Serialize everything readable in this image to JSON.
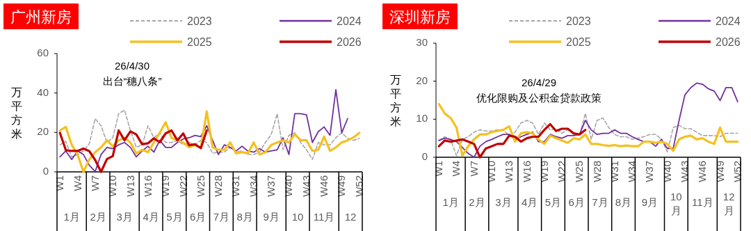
{
  "chart_data": [
    {
      "type": "line",
      "title": "广州新房",
      "ylabel": "万平方米",
      "ylim": [
        0,
        60
      ],
      "yticks": [
        0,
        20,
        40,
        60
      ],
      "grid": false,
      "legend": "top",
      "categories": [
        "W1",
        null,
        null,
        "W4",
        null,
        null,
        "W7",
        null,
        null,
        "W10",
        null,
        null,
        "W13",
        null,
        null,
        "W16",
        null,
        null,
        "W19",
        null,
        null,
        "W22",
        null,
        null,
        "W25",
        null,
        null,
        "W28",
        null,
        null,
        "W31",
        null,
        null,
        "W34",
        null,
        null,
        "W37",
        null,
        null,
        "W40",
        null,
        null,
        "W43",
        null,
        null,
        "W46",
        null,
        null,
        "W49",
        null,
        null,
        "W52"
      ],
      "annotations": [
        "26/4/30\n出台“穗八条”",
        "1月",
        "2月",
        "3月",
        "4月",
        "5月",
        "6月",
        "7月",
        "8月",
        "9月",
        "10",
        "11月",
        "12"
      ],
      "series": [
        {
          "name": "2023",
          "color": "#a6a6a6",
          "line_style": "dashed",
          "values": [
            13.7,
            15.5,
            7.6,
            8.8,
            10.6,
            14.3,
            27,
            23.4,
            14.9,
            17.3,
            29.5,
            31.3,
            21,
            12.4,
            13.7,
            23.4,
            17.3,
            19.8,
            14.9,
            14.9,
            16,
            13.7,
            14.9,
            13.7,
            16,
            14.9,
            9.4,
            10,
            10,
            12.4,
            10,
            10.6,
            8.8,
            8.8,
            10,
            14.9,
            19,
            29.5,
            11.2,
            18.5,
            19.8,
            14.9,
            11.2,
            6.3,
            14.9,
            13.7,
            13.7,
            17.3,
            19.8,
            17,
            16,
            17
          ]
        },
        {
          "name": "2024",
          "color": "#7030a0",
          "line_style": "solid",
          "values": [
            7.6,
            10.6,
            6.3,
            10.6,
            8.8,
            3.3,
            0.2,
            8.8,
            12.4,
            11.8,
            13.7,
            14.9,
            12.4,
            7.6,
            10.6,
            13,
            10,
            16,
            12.4,
            12.4,
            14.9,
            16.7,
            17.3,
            18.5,
            17.9,
            23.4,
            16,
            8.8,
            13.7,
            12.4,
            10.6,
            13,
            10.6,
            10,
            11.8,
            10,
            10.6,
            11.2,
            17.3,
            8.8,
            29.5,
            29.5,
            28.9,
            14.9,
            20.4,
            22.8,
            18.5,
            41.7,
            19.8,
            27,
            null,
            null
          ]
        },
        {
          "name": "2025",
          "color": "#f5c020",
          "line_style": "solid",
          "values": [
            21,
            22.8,
            13.7,
            8.8,
            0,
            6.3,
            10,
            12.4,
            16,
            13,
            16,
            17.3,
            14.9,
            9.4,
            11.2,
            10,
            14.9,
            19.8,
            25.2,
            17.3,
            16,
            14.9,
            12.4,
            13.7,
            12.4,
            30.7,
            12.4,
            11.2,
            11.2,
            14.9,
            9.4,
            10,
            9.4,
            14.9,
            8.8,
            10,
            13.7,
            14.9,
            16,
            14.9,
            19.1,
            16,
            16,
            10.6,
            11.2,
            17.9,
            10.6,
            12.4,
            14.9,
            16,
            17.5,
            19.8
          ]
        },
        {
          "name": "2026",
          "color": "#c00000",
          "line_style": "solid",
          "values": [
            19.8,
            11,
            10.6,
            10.6,
            11.8,
            10.5,
            6,
            0,
            6.5,
            8,
            21,
            16,
            20.5,
            19,
            14,
            14.5,
            17,
            15,
            19.5,
            21,
            16,
            19.5,
            13.5,
            14,
            12,
            21,
            null,
            null,
            null,
            null,
            null,
            null,
            null,
            null,
            null,
            null,
            null,
            null,
            null,
            null,
            null,
            null,
            null,
            null,
            null,
            null,
            null,
            null,
            null,
            null,
            null,
            null
          ]
        }
      ]
    },
    {
      "type": "line",
      "title": "深圳新房",
      "ylabel": "万平方米",
      "ylim": [
        0,
        30
      ],
      "yticks": [
        0,
        10,
        20,
        30
      ],
      "grid": false,
      "legend": "top",
      "categories": [
        "W1",
        null,
        null,
        "W4",
        null,
        null,
        "W7",
        null,
        null,
        "W10",
        null,
        null,
        "W13",
        null,
        null,
        "W16",
        null,
        null,
        "W19",
        null,
        null,
        "W22",
        null,
        null,
        "W25",
        null,
        null,
        "W28",
        null,
        null,
        "W31",
        null,
        null,
        "W34",
        null,
        null,
        "W37",
        null,
        null,
        "W40",
        null,
        null,
        "W43",
        null,
        null,
        "W46",
        null,
        null,
        "W49",
        null,
        null,
        "W52"
      ],
      "annotations": [
        "26/4/29\n优化限购及公积金贷款政策",
        "1月",
        "2月",
        "3月",
        "4月",
        "5月",
        "6月",
        "7月",
        "8月",
        "9月",
        "10月",
        "11月",
        "12月"
      ],
      "series": [
        {
          "name": "2023",
          "color": "#a6a6a6",
          "line_style": "dashed",
          "values": [
            4.4,
            5.4,
            4.7,
            0.4,
            4.7,
            5.4,
            6.6,
            7.2,
            6.9,
            6.9,
            7.2,
            7.2,
            5.7,
            6.6,
            9,
            9.7,
            9,
            6,
            9,
            7.2,
            7.5,
            6.3,
            7.2,
            6,
            5.7,
            11.5,
            4.7,
            9.7,
            10.3,
            7.8,
            6,
            5.4,
            5.4,
            4.7,
            5,
            5.4,
            6,
            6,
            4.7,
            1.4,
            7.8,
            8.4,
            7.5,
            7.5,
            6.6,
            5.7,
            5.7,
            5.7,
            5.4,
            6.3,
            6.3,
            6.3
          ]
        },
        {
          "name": "2024",
          "color": "#7030a0",
          "line_style": "solid",
          "values": [
            4.4,
            5,
            4.7,
            4.1,
            2.6,
            1,
            0,
            2.9,
            4.1,
            4.7,
            5.4,
            6,
            6,
            4.7,
            5.4,
            6,
            6.6,
            4.1,
            4.1,
            6,
            5.4,
            5,
            5.7,
            5.7,
            6,
            9.7,
            7.2,
            6,
            6.3,
            6.3,
            7.2,
            6.3,
            6.3,
            5.4,
            4.7,
            4.1,
            4.1,
            2.9,
            4.7,
            2.3,
            2.3,
            9.7,
            16.4,
            18.3,
            19.5,
            19.2,
            18,
            17.4,
            14.9,
            18.3,
            18.3,
            14.6
          ]
        },
        {
          "name": "2025",
          "color": "#f5c020",
          "line_style": "solid",
          "values": [
            14,
            11.5,
            10.3,
            7.8,
            0.4,
            2.9,
            4.7,
            6,
            6,
            6.6,
            6.9,
            7.2,
            8.1,
            4.1,
            6.3,
            6.6,
            6.3,
            4.7,
            3.5,
            5.7,
            5,
            4.4,
            3.8,
            5,
            4.7,
            6,
            3.5,
            3.5,
            3.2,
            3,
            3.2,
            2.9,
            3.1,
            2.9,
            2.9,
            4.1,
            4.1,
            3.8,
            4.1,
            3.5,
            1.7,
            4.7,
            5.4,
            5.7,
            4.7,
            5,
            4.1,
            3.5,
            7.8,
            4.1,
            4.1,
            4.1
          ]
        },
        {
          "name": "2026",
          "color": "#c00000",
          "line_style": "solid",
          "values": [
            2.9,
            4.4,
            4.1,
            4.4,
            4.7,
            4.1,
            3.5,
            0,
            2.3,
            2.9,
            3.5,
            3.5,
            5.7,
            5.4,
            4.1,
            5,
            5.4,
            5.4,
            7.2,
            8.7,
            6.9,
            7.5,
            7.5,
            6.3,
            6,
            7.2,
            null,
            null,
            null,
            null,
            null,
            null,
            null,
            null,
            null,
            null,
            null,
            null,
            null,
            null,
            null,
            null,
            null,
            null,
            null,
            null,
            null,
            null,
            null,
            null,
            null,
            null
          ]
        }
      ]
    }
  ]
}
